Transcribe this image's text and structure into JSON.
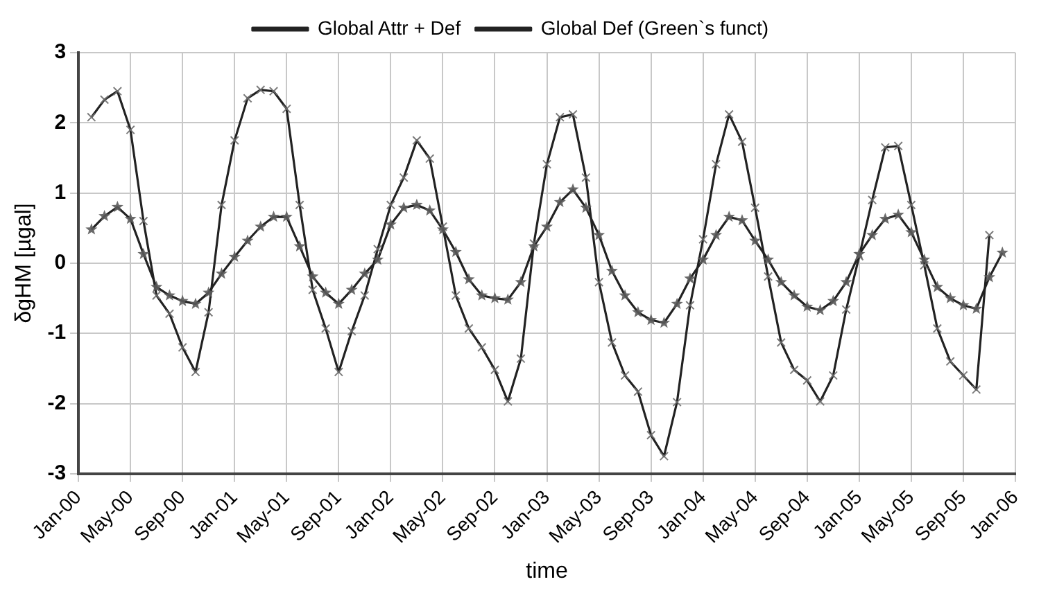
{
  "chart_data": {
    "type": "line",
    "xlabel": "time",
    "ylabel": "δgHM [µgal]",
    "x": [
      "2000-02",
      "2000-03",
      "2000-04",
      "2000-05",
      "2000-06",
      "2000-07",
      "2000-08",
      "2000-09",
      "2000-10",
      "2000-11",
      "2000-12",
      "2001-01",
      "2001-02",
      "2001-03",
      "2001-04",
      "2001-05",
      "2001-06",
      "2001-07",
      "2001-08",
      "2001-09",
      "2001-10",
      "2001-11",
      "2001-12",
      "2002-01",
      "2002-02",
      "2002-03",
      "2002-04",
      "2002-05",
      "2002-06",
      "2002-07",
      "2002-08",
      "2002-09",
      "2002-10",
      "2002-11",
      "2002-12",
      "2003-01",
      "2003-02",
      "2003-03",
      "2003-04",
      "2003-05",
      "2003-06",
      "2003-07",
      "2003-08",
      "2003-09",
      "2003-10",
      "2003-11",
      "2003-12",
      "2004-01",
      "2004-02",
      "2004-03",
      "2004-04",
      "2004-05",
      "2004-06",
      "2004-07",
      "2004-08",
      "2004-09",
      "2004-10",
      "2004-11",
      "2004-12",
      "2005-01",
      "2005-02",
      "2005-03",
      "2005-04",
      "2005-05",
      "2005-06",
      "2005-07",
      "2005-08",
      "2005-09",
      "2005-10",
      "2005-11",
      "2005-12"
    ],
    "series": [
      {
        "name": "Global Attr + Def",
        "color": "#222222",
        "marker": "cross",
        "values": [
          2.08,
          2.33,
          2.45,
          1.9,
          0.6,
          -0.46,
          -0.72,
          -1.2,
          -1.55,
          -0.7,
          0.83,
          1.75,
          2.35,
          2.47,
          2.45,
          2.2,
          0.83,
          -0.38,
          -0.93,
          -1.55,
          -0.97,
          -0.46,
          0.2,
          0.83,
          1.22,
          1.75,
          1.49,
          0.52,
          -0.46,
          -0.93,
          -1.2,
          -1.52,
          -1.97,
          -1.36,
          0.28,
          1.41,
          2.08,
          2.12,
          1.22,
          -0.27,
          -1.13,
          -1.6,
          -1.83,
          -2.45,
          -2.75,
          -1.98,
          -0.6,
          0.34,
          1.41,
          2.12,
          1.73,
          0.79,
          -0.19,
          -1.13,
          -1.52,
          -1.67,
          -1.97,
          -1.6,
          -0.66,
          0.1,
          0.9,
          1.65,
          1.67,
          0.83,
          -0.03,
          -0.93,
          -1.4,
          -1.6,
          -1.8,
          0.4,
          null
        ]
      },
      {
        "name": "Global Def (Green`s funct)",
        "color": "#222222",
        "marker": "star",
        "values": [
          0.48,
          0.67,
          0.8,
          0.63,
          0.13,
          -0.34,
          -0.46,
          -0.54,
          -0.58,
          -0.42,
          -0.15,
          0.09,
          0.32,
          0.52,
          0.66,
          0.66,
          0.24,
          -0.19,
          -0.42,
          -0.58,
          -0.38,
          -0.15,
          0.05,
          0.55,
          0.79,
          0.83,
          0.75,
          0.48,
          0.16,
          -0.23,
          -0.46,
          -0.5,
          -0.52,
          -0.27,
          0.24,
          0.52,
          0.87,
          1.05,
          0.79,
          0.4,
          -0.11,
          -0.46,
          -0.7,
          -0.81,
          -0.85,
          -0.58,
          -0.22,
          0.05,
          0.4,
          0.66,
          0.61,
          0.32,
          0.05,
          -0.27,
          -0.46,
          -0.62,
          -0.67,
          -0.54,
          -0.27,
          0.13,
          0.4,
          0.63,
          0.69,
          0.44,
          0.05,
          -0.34,
          -0.5,
          -0.6,
          -0.65,
          -0.2,
          0.15
        ]
      }
    ],
    "xlim": [
      "2000-01",
      "2006-01"
    ],
    "xticks": [
      {
        "value": "2000-01",
        "label": "Jan-00"
      },
      {
        "value": "2000-05",
        "label": "May-00"
      },
      {
        "value": "2000-09",
        "label": "Sep-00"
      },
      {
        "value": "2001-01",
        "label": "Jan-01"
      },
      {
        "value": "2001-05",
        "label": "May-01"
      },
      {
        "value": "2001-09",
        "label": "Sep-01"
      },
      {
        "value": "2002-01",
        "label": "Jan-02"
      },
      {
        "value": "2002-05",
        "label": "May-02"
      },
      {
        "value": "2002-09",
        "label": "Sep-02"
      },
      {
        "value": "2003-01",
        "label": "Jan-03"
      },
      {
        "value": "2003-05",
        "label": "May-03"
      },
      {
        "value": "2003-09",
        "label": "Sep-03"
      },
      {
        "value": "2004-01",
        "label": "Jan-04"
      },
      {
        "value": "2004-05",
        "label": "May-04"
      },
      {
        "value": "2004-09",
        "label": "Sep-04"
      },
      {
        "value": "2005-01",
        "label": "Jan-05"
      },
      {
        "value": "2005-05",
        "label": "May-05"
      },
      {
        "value": "2005-09",
        "label": "Sep-05"
      },
      {
        "value": "2006-01",
        "label": "Jan-06"
      }
    ],
    "ylim": [
      -3,
      3
    ],
    "yticks": [
      -3,
      -2,
      -1,
      0,
      1,
      2,
      3
    ],
    "grid": true,
    "legend": "top",
    "line_style": "solid"
  }
}
